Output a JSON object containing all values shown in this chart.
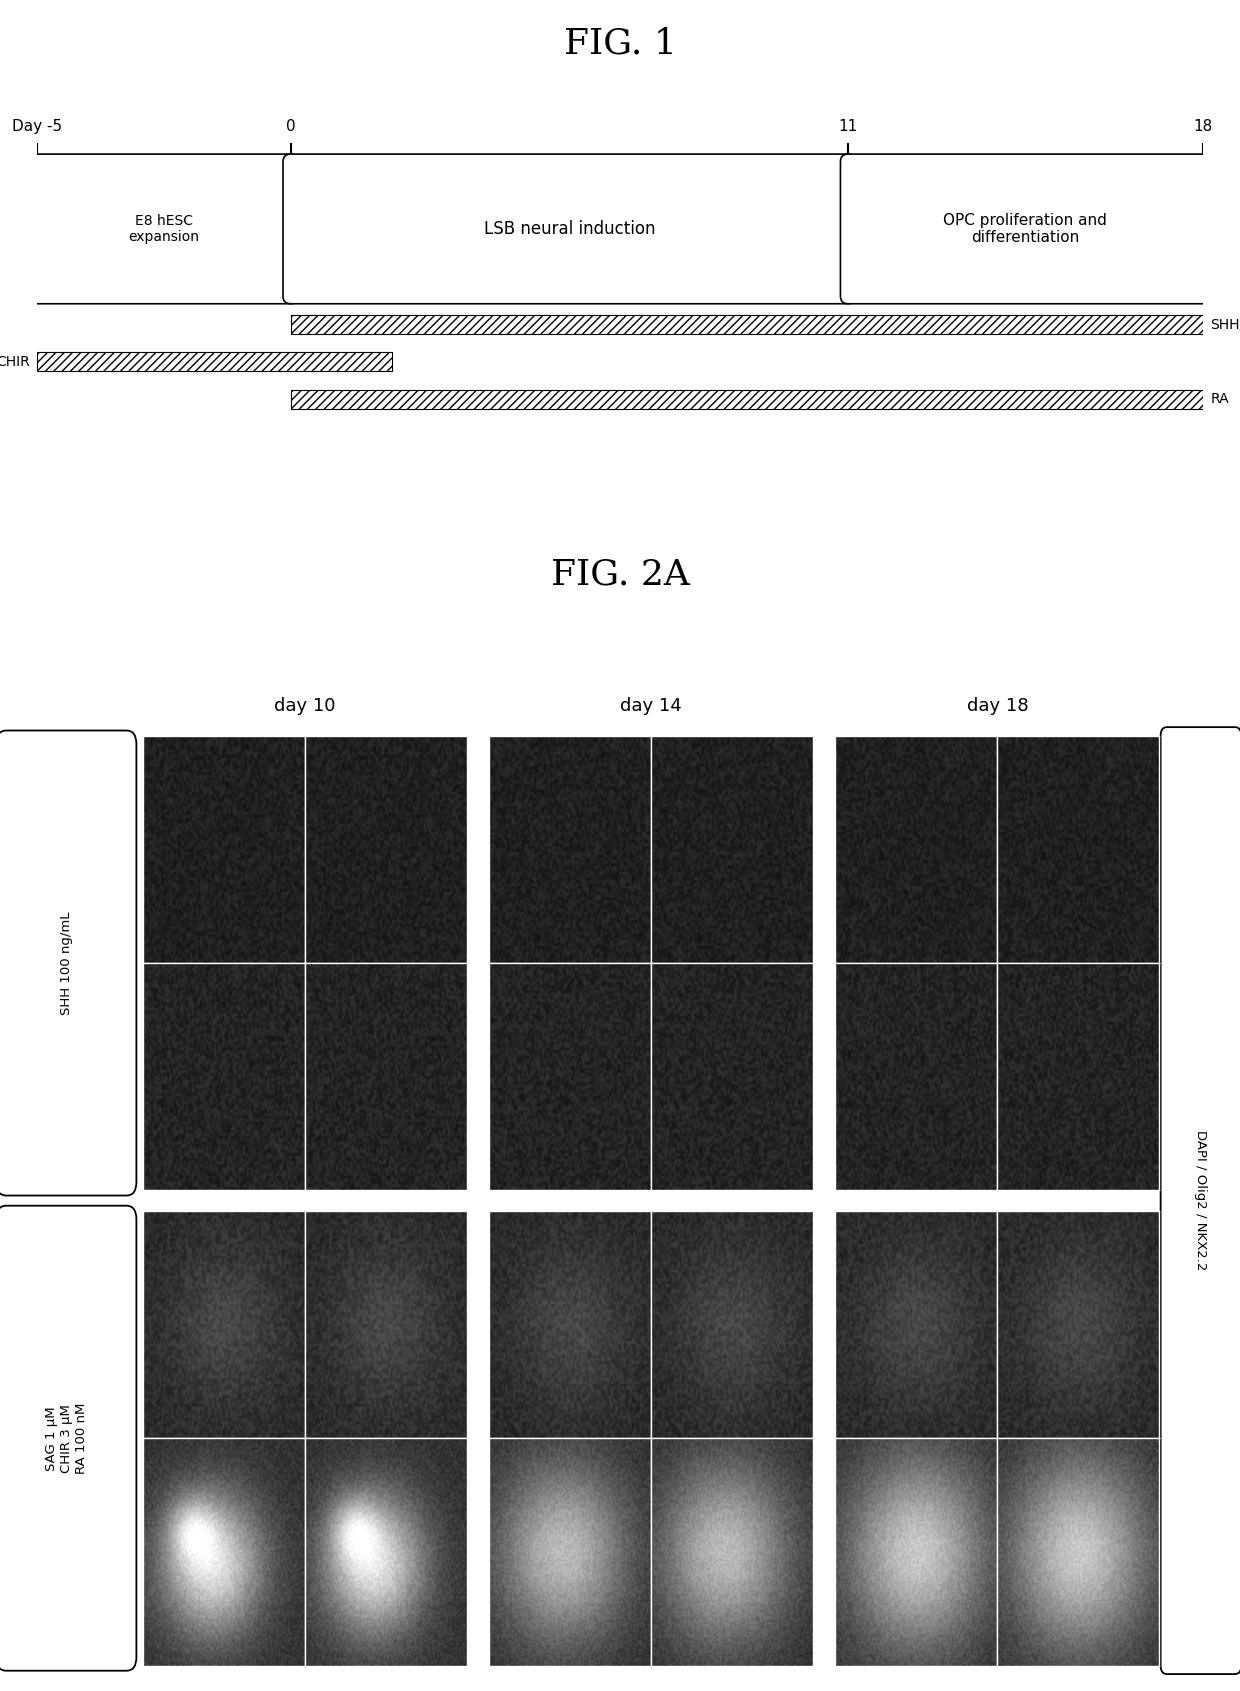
{
  "fig1_title": "FIG. 1",
  "fig2_title": "FIG. 2A",
  "timeline_labels": [
    "Day -5",
    "0",
    "11",
    "18"
  ],
  "timeline_days": [
    -5,
    0,
    11,
    18
  ],
  "box1_label": "E8 hESC\nexpansion",
  "box2_label": "LSB neural induction",
  "box3_label": "OPC proliferation and\ndifferentiation",
  "shh_label": "SHH/SAG",
  "chir_label": "CHIR",
  "ra_label": "RA",
  "col_labels": [
    "day 10",
    "day 14",
    "day 18"
  ],
  "row_label1": "SHH 100 ng/mL",
  "row_label2": "SAG 1 μM\nCHIR 3 μM\nRA 100 nM",
  "dapi_label": "DAPI / Olig2 / NKX2.2",
  "bg_color": "#ffffff",
  "hatch_pattern": "////"
}
